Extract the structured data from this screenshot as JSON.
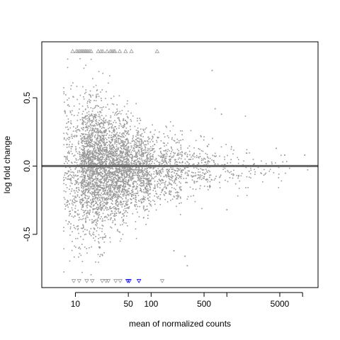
{
  "chart_data": {
    "type": "scatter",
    "title": "",
    "xlabel": "mean of normalized counts",
    "ylabel": "log fold change",
    "x_scale": "log10",
    "xlim": [
      3.6,
      16000
    ],
    "ylim": [
      -0.89,
      0.91
    ],
    "x_ticks": [
      10,
      50,
      100,
      500,
      5000
    ],
    "x_tick_labels": [
      "10",
      "50",
      "100",
      "500",
      "5000"
    ],
    "x_minor_ticks": [
      1000,
      10000
    ],
    "y_ticks": [
      -0.5,
      0.0,
      0.5
    ],
    "y_tick_labels": [
      "-0.5",
      "0.0",
      "0.5"
    ],
    "reference_line": {
      "y": 0,
      "color": "#666666"
    },
    "grid": false,
    "legend": "none",
    "colors": {
      "point": "#999999",
      "significant": "#0000ff",
      "clipped": "#999999"
    },
    "series": [
      {
        "kind": "density_summary",
        "bins": [
          {
            "x_range": [
              7,
              12
            ],
            "n": 340,
            "y_sd": 0.28
          },
          {
            "x_range": [
              12,
              25
            ],
            "n": 1500,
            "y_sd": 0.24
          },
          {
            "x_range": [
              25,
              50
            ],
            "n": 1200,
            "y_sd": 0.19
          },
          {
            "x_range": [
              50,
              100
            ],
            "n": 700,
            "y_sd": 0.15
          },
          {
            "x_range": [
              100,
              250
            ],
            "n": 420,
            "y_sd": 0.12
          },
          {
            "x_range": [
              250,
              600
            ],
            "n": 200,
            "y_sd": 0.1
          },
          {
            "x_range": [
              600,
              2000
            ],
            "n": 90,
            "y_sd": 0.09
          },
          {
            "x_range": [
              2000,
              8000
            ],
            "n": 40,
            "y_sd": 0.05
          },
          {
            "x_range": [
              8000,
              12000
            ],
            "n": 2,
            "y_sd": 0.03
          }
        ],
        "y_mean": -0.02
      },
      {
        "kind": "notable_points",
        "points": [
          {
            "x": 640,
            "y": 0.7
          },
          {
            "x": 700,
            "y": 0.42
          },
          {
            "x": 850,
            "y": 0.38
          },
          {
            "x": 300,
            "y": -0.73
          },
          {
            "x": 280,
            "y": -0.66
          },
          {
            "x": 200,
            "y": -0.62
          },
          {
            "x": 1000,
            "y": -0.32
          },
          {
            "x": 10700,
            "y": 0.08
          },
          {
            "x": 5800,
            "y": 0.08
          },
          {
            "x": 4500,
            "y": 0.13
          },
          {
            "x": 1150,
            "y": 0.14
          }
        ]
      },
      {
        "kind": "clipped_up",
        "y": 0.84,
        "x": [
          9.2,
          10.3,
          10.8,
          11.4,
          11.9,
          12.4,
          12.9,
          13.5,
          14.0,
          14.6,
          15.3,
          16.1,
          20.0,
          21.8,
          23.0,
          26.2,
          29.0,
          30.4,
          32.0,
          33.2,
          38.5,
          46.0,
          55.0,
          120.0
        ]
      },
      {
        "kind": "clipped_down",
        "y": -0.84,
        "x": [
          9.5,
          11.2,
          14.1,
          16.7,
          22.6,
          25.4,
          27.2,
          34.0,
          39.0,
          140.0
        ]
      },
      {
        "kind": "clipped_down_significant",
        "y": -0.84,
        "x": [
          49.0,
          51.5,
          69.0
        ]
      }
    ]
  }
}
